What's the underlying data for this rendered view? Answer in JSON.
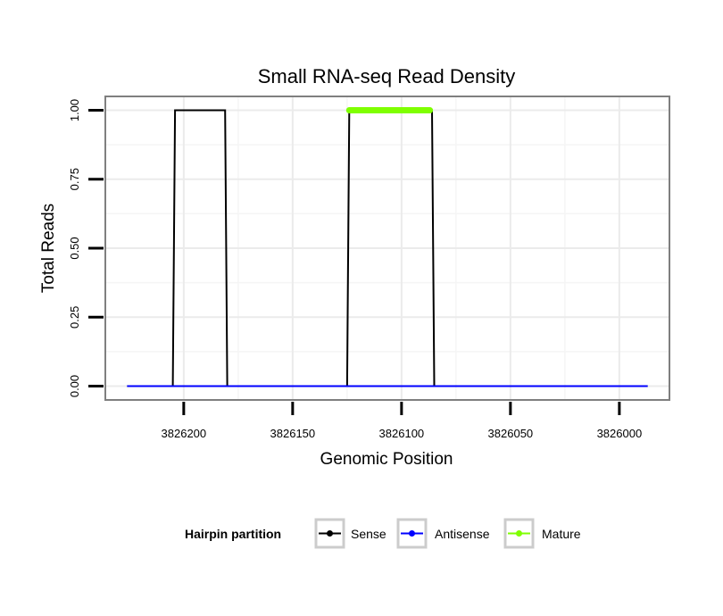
{
  "chart_data": {
    "type": "line",
    "title": "Small RNA-seq Read Density",
    "xlabel": "Genomic Position",
    "ylabel": "Total Reads",
    "x_reversed": true,
    "xlim": [
      3826236,
      3825977
    ],
    "ylim": [
      -0.05,
      1.05
    ],
    "x_ticks": [
      3826200,
      3826150,
      3826100,
      3826050,
      3826000
    ],
    "x_tick_labels": [
      "3826200",
      "3826150",
      "3826100",
      "3826050",
      "3826000"
    ],
    "y_ticks": [
      0,
      0.25,
      0.5,
      0.75,
      1
    ],
    "y_tick_labels": [
      "0.00",
      "0.25",
      "0.50",
      "0.75",
      "1.00"
    ],
    "grid": true,
    "legend": {
      "title": "Hairpin partition",
      "position": "bottom",
      "entries": [
        "Sense",
        "Antisense",
        "Mature"
      ]
    },
    "colors": {
      "Sense": "#000000",
      "Antisense": "#0000ff",
      "Mature": "#7fff00"
    },
    "series": [
      {
        "name": "Sense",
        "x": [
          3826226,
          3826205,
          3826204,
          3826181,
          3826180,
          3826125,
          3826124,
          3826086,
          3826085,
          3825987
        ],
        "y": [
          0,
          0,
          1,
          1,
          0,
          0,
          1,
          1,
          0,
          0
        ]
      },
      {
        "name": "Antisense",
        "x": [
          3826226,
          3825987
        ],
        "y": [
          0,
          0
        ]
      },
      {
        "name": "Mature",
        "x": [
          3826124,
          3826087
        ],
        "y": [
          1,
          1
        ]
      }
    ]
  }
}
